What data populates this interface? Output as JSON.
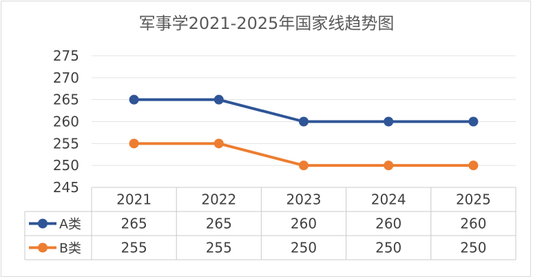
{
  "chart_data": {
    "type": "line",
    "title": "军事学2021-2025年国家线趋势图",
    "categories": [
      "2021",
      "2022",
      "2023",
      "2024",
      "2025"
    ],
    "series": [
      {
        "name": "A类",
        "color": "#2f5597",
        "values": [
          265,
          265,
          260,
          260,
          260
        ]
      },
      {
        "name": "B类",
        "color": "#ed7d31",
        "values": [
          255,
          255,
          250,
          250,
          250
        ]
      }
    ],
    "ylim": [
      245,
      275
    ],
    "yticks": [
      245,
      250,
      255,
      260,
      265,
      270,
      275
    ],
    "grid": true,
    "data_table": true
  }
}
